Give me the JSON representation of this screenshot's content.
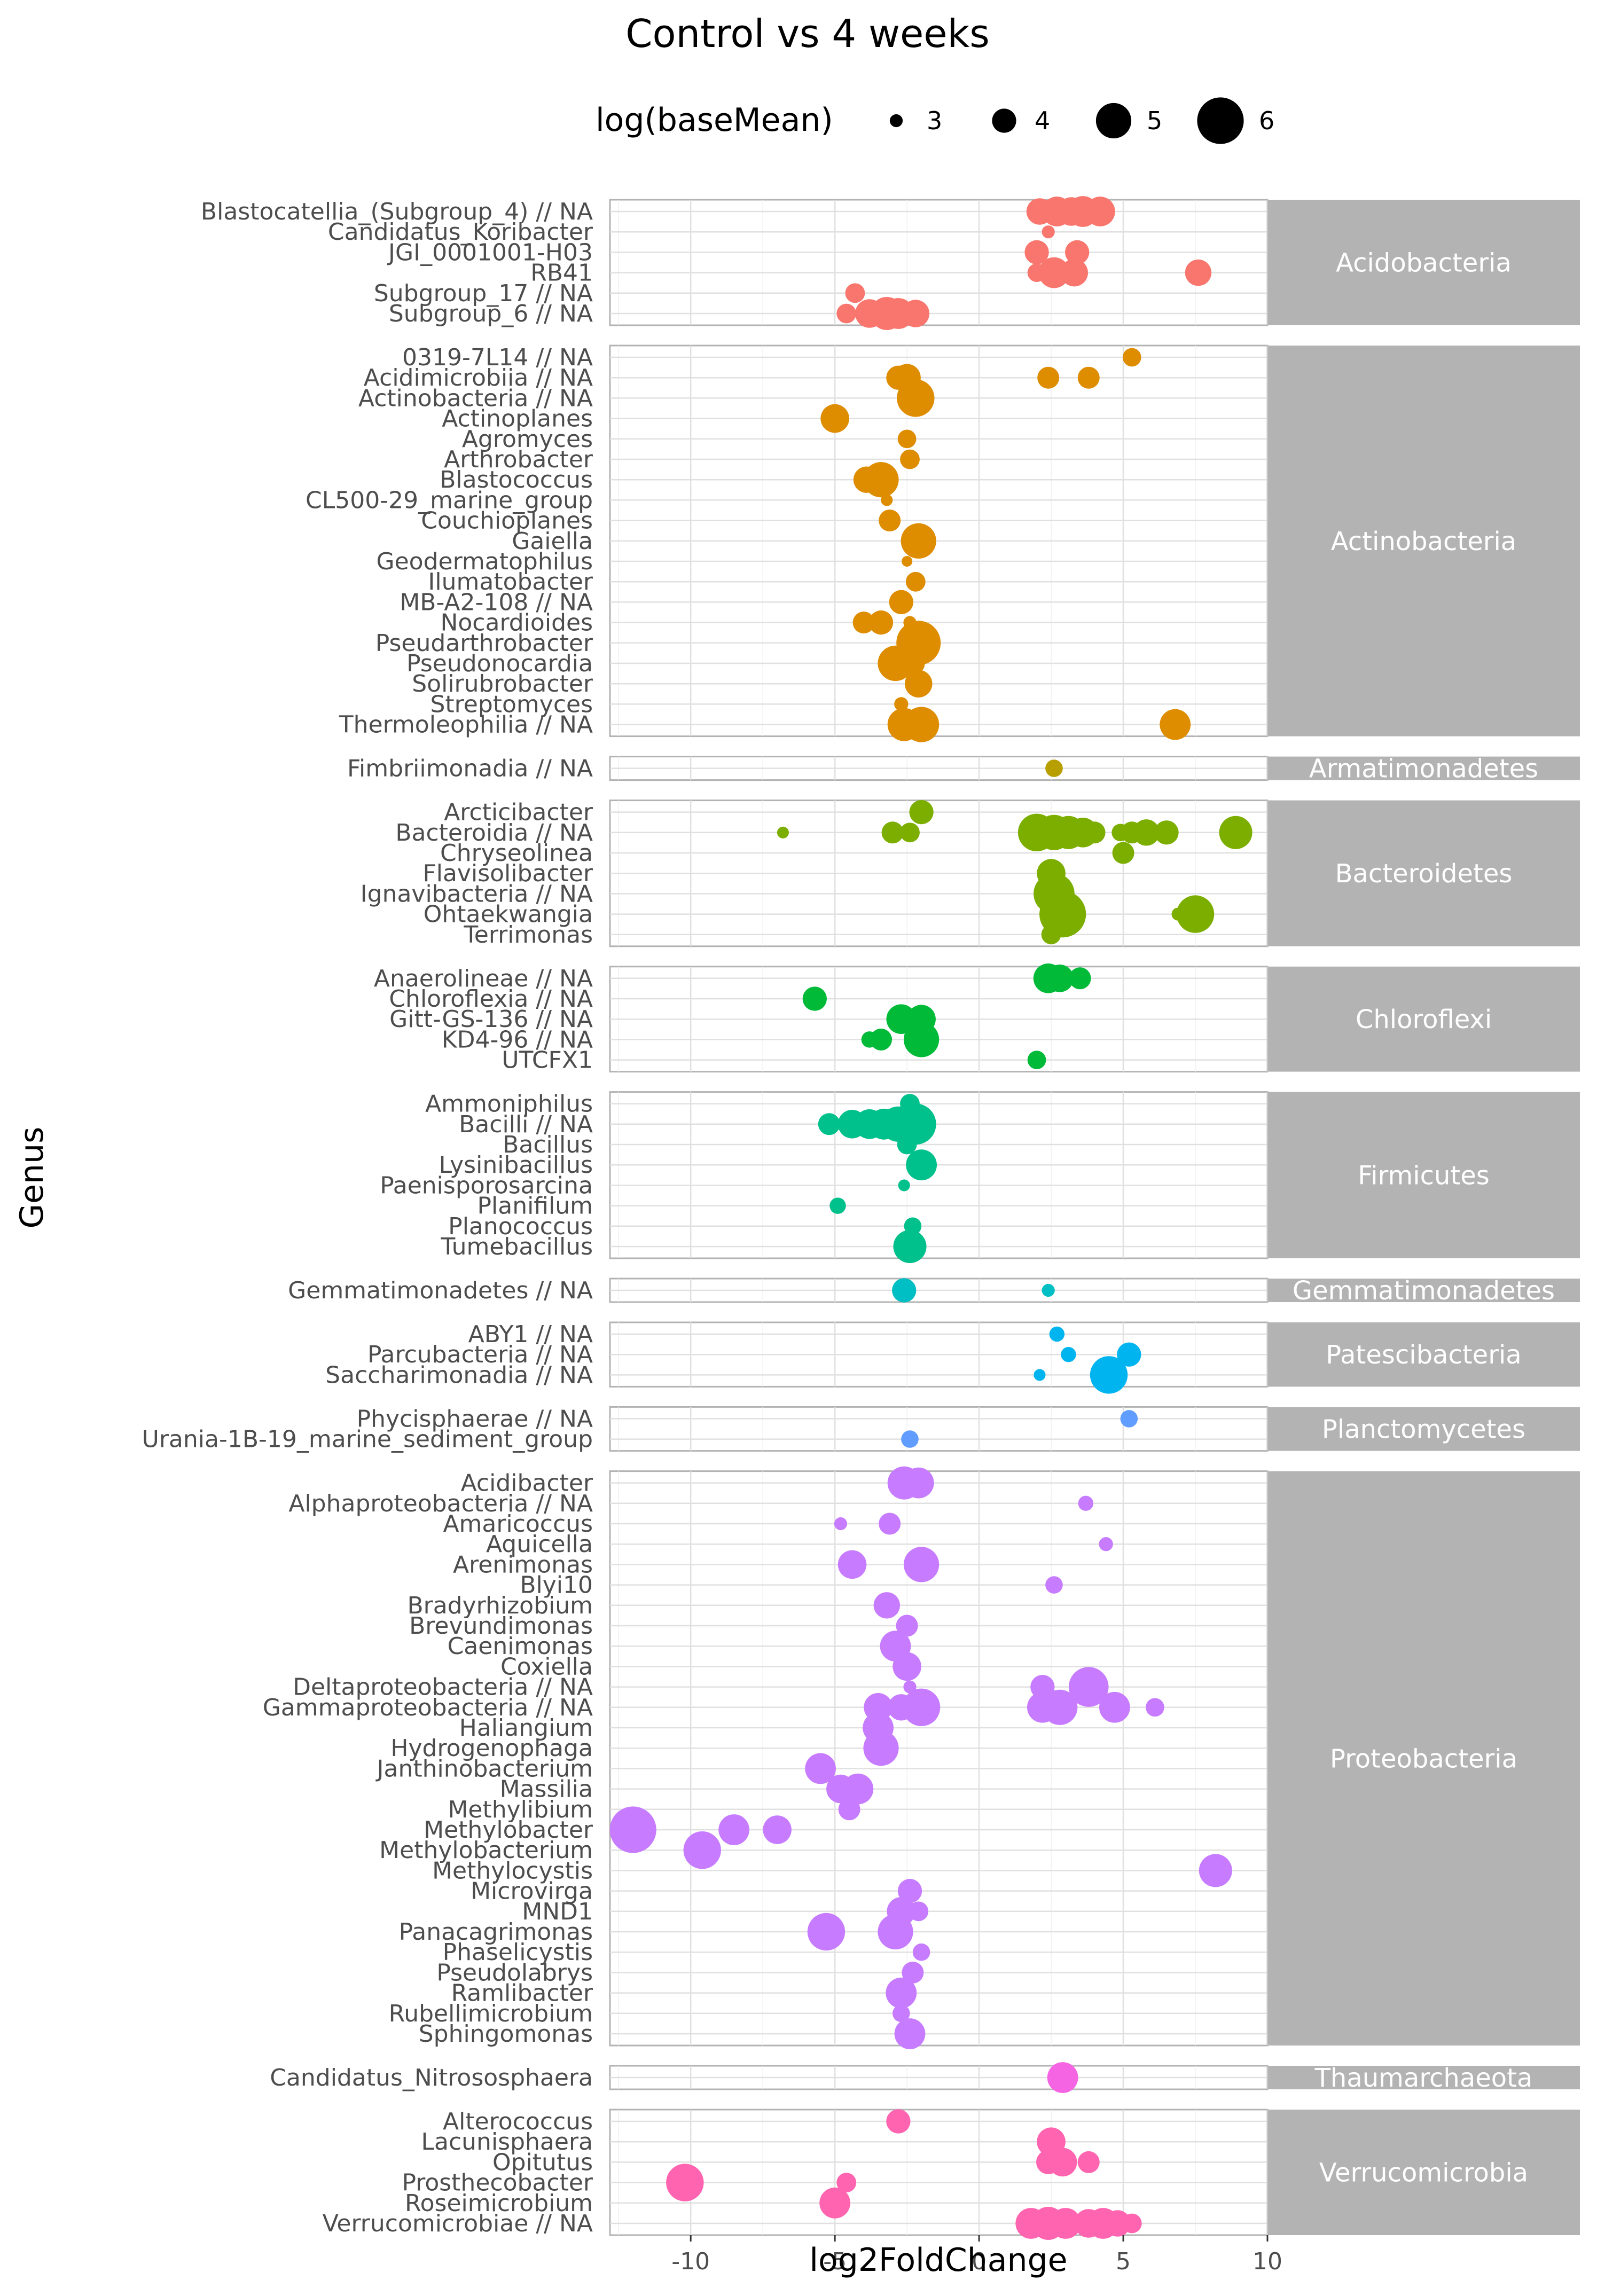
{
  "chart_data": {
    "type": "scatter",
    "title": "Control vs 4 weeks",
    "xlabel": "log2FoldChange",
    "ylabel": "Genus",
    "xlim": [
      -12.8,
      10
    ],
    "xticks": [
      -10,
      -5,
      0,
      5,
      10
    ],
    "grid": true,
    "legend": {
      "title": "log(baseMean)",
      "position": "top",
      "sizes": [
        3,
        4,
        5,
        6
      ]
    },
    "colors": {
      "Acidobacteria": "#F8766D",
      "Actinobacteria": "#DE8C00",
      "Armatimonadetes": "#B79F00",
      "Bacteroidetes": "#7CAE00",
      "Chloroflexi": "#00BA38",
      "Firmicutes": "#00C08B",
      "Gemmatimonadetes": "#00BFC4",
      "Patescibacteria": "#00B4F0",
      "Planctomycetes": "#619CFF",
      "Proteobacteria": "#C77CFF",
      "Thaumarchaeota": "#F564E3",
      "Verrucomicrobia": "#FF64B0"
    },
    "panels": [
      {
        "name": "Acidobacteria",
        "genera": [
          "Subgroup_6 // NA",
          "Subgroup_17 // NA",
          "RB41",
          "JGI_0001001-H03",
          "Candidatus_Koribacter",
          "Blastocatellia_(Subgroup_4) // NA"
        ],
        "points": [
          {
            "g": 0,
            "x": -4.6,
            "s": 3.6
          },
          {
            "g": 0,
            "x": -3.8,
            "s": 4.4
          },
          {
            "g": 0,
            "x": -3.2,
            "s": 4.8
          },
          {
            "g": 0,
            "x": -2.8,
            "s": 4.6
          },
          {
            "g": 0,
            "x": -2.2,
            "s": 4.3
          },
          {
            "g": 1,
            "x": -4.3,
            "s": 3.6
          },
          {
            "g": 2,
            "x": 2.0,
            "s": 3.5
          },
          {
            "g": 2,
            "x": 2.6,
            "s": 4.6
          },
          {
            "g": 2,
            "x": 3.3,
            "s": 4.3
          },
          {
            "g": 2,
            "x": 7.6,
            "s": 4.2
          },
          {
            "g": 3,
            "x": 2.0,
            "s": 4.0
          },
          {
            "g": 3,
            "x": 3.4,
            "s": 4.0
          },
          {
            "g": 4,
            "x": 2.4,
            "s": 3.0
          },
          {
            "g": 5,
            "x": 2.1,
            "s": 4.2
          },
          {
            "g": 5,
            "x": 2.7,
            "s": 4.5
          },
          {
            "g": 5,
            "x": 3.2,
            "s": 4.4
          },
          {
            "g": 5,
            "x": 3.6,
            "s": 4.6
          },
          {
            "g": 5,
            "x": 4.2,
            "s": 4.5
          }
        ]
      },
      {
        "name": "Actinobacteria",
        "genera": [
          "Thermoleophilia // NA",
          "Streptomyces",
          "Solirubrobacter",
          "Pseudonocardia",
          "Pseudarthrobacter",
          "Nocardioides",
          "MB-A2-108 // NA",
          "Ilumatobacter",
          "Geodermatophilus",
          "Gaiella",
          "Couchioplanes",
          "CL500-29_marine_group",
          "Blastococcus",
          "Arthrobacter",
          "Agromyces",
          "Actinoplanes",
          "Actinobacteria // NA",
          "Acidimicrobiia // NA",
          "0319-7L14 // NA"
        ],
        "points": [
          {
            "g": 0,
            "x": -2.6,
            "s": 4.8
          },
          {
            "g": 0,
            "x": -2.0,
            "s": 5.0
          },
          {
            "g": 0,
            "x": 6.8,
            "s": 4.6
          },
          {
            "g": 1,
            "x": -2.7,
            "s": 3.1
          },
          {
            "g": 2,
            "x": -2.1,
            "s": 4.3
          },
          {
            "g": 3,
            "x": -2.9,
            "s": 5.0
          },
          {
            "g": 3,
            "x": -2.3,
            "s": 4.0
          },
          {
            "g": 4,
            "x": -2.1,
            "s": 5.8
          },
          {
            "g": 5,
            "x": -4.0,
            "s": 3.8
          },
          {
            "g": 5,
            "x": -3.4,
            "s": 4.0
          },
          {
            "g": 5,
            "x": -2.4,
            "s": 3.0
          },
          {
            "g": 6,
            "x": -2.7,
            "s": 4.0
          },
          {
            "g": 7,
            "x": -2.2,
            "s": 3.6
          },
          {
            "g": 8,
            "x": -2.5,
            "s": 2.8
          },
          {
            "g": 9,
            "x": -2.1,
            "s": 5.0
          },
          {
            "g": 10,
            "x": -3.1,
            "s": 3.8
          },
          {
            "g": 11,
            "x": -3.2,
            "s": 2.9
          },
          {
            "g": 12,
            "x": -3.9,
            "s": 4.2
          },
          {
            "g": 12,
            "x": -3.4,
            "s": 5.0
          },
          {
            "g": 13,
            "x": -2.4,
            "s": 3.6
          },
          {
            "g": 14,
            "x": -2.5,
            "s": 3.5
          },
          {
            "g": 15,
            "x": -5.0,
            "s": 4.4
          },
          {
            "g": 16,
            "x": -2.2,
            "s": 5.2
          },
          {
            "g": 17,
            "x": -2.8,
            "s": 4.0
          },
          {
            "g": 17,
            "x": -2.5,
            "s": 4.3
          },
          {
            "g": 17,
            "x": 2.4,
            "s": 3.8
          },
          {
            "g": 17,
            "x": 3.8,
            "s": 3.8
          },
          {
            "g": 18,
            "x": 5.3,
            "s": 3.5
          }
        ]
      },
      {
        "name": "Armatimonadetes",
        "genera": [
          "Fimbriimonadia // NA"
        ],
        "points": [
          {
            "g": 0,
            "x": 2.6,
            "s": 3.4
          }
        ]
      },
      {
        "name": "Bacteroidetes",
        "genera": [
          "Terrimonas",
          "Ohtaekwangia",
          "Ignavibacteria // NA",
          "Flavisolibacter",
          "Chryseolinea",
          "Bacteroidia // NA",
          "Arcticibacter"
        ],
        "points": [
          {
            "g": 0,
            "x": 2.5,
            "s": 3.6
          },
          {
            "g": 1,
            "x": 2.9,
            "s": 6.0
          },
          {
            "g": 1,
            "x": 6.9,
            "s": 3.0
          },
          {
            "g": 1,
            "x": 7.5,
            "s": 5.2
          },
          {
            "g": 2,
            "x": 2.6,
            "s": 5.5
          },
          {
            "g": 3,
            "x": 2.5,
            "s": 4.4
          },
          {
            "g": 4,
            "x": 5.0,
            "s": 3.8
          },
          {
            "g": 5,
            "x": -6.8,
            "s": 2.9
          },
          {
            "g": 5,
            "x": -3.0,
            "s": 3.8
          },
          {
            "g": 5,
            "x": -2.4,
            "s": 3.6
          },
          {
            "g": 5,
            "x": 2.0,
            "s": 5.2
          },
          {
            "g": 5,
            "x": 2.6,
            "s": 5.0
          },
          {
            "g": 5,
            "x": 3.1,
            "s": 4.8
          },
          {
            "g": 5,
            "x": 3.6,
            "s": 4.5
          },
          {
            "g": 5,
            "x": 4.0,
            "s": 3.8
          },
          {
            "g": 5,
            "x": 4.9,
            "s": 3.4
          },
          {
            "g": 5,
            "x": 5.3,
            "s": 3.8
          },
          {
            "g": 5,
            "x": 5.8,
            "s": 4.2
          },
          {
            "g": 5,
            "x": 6.5,
            "s": 4.0
          },
          {
            "g": 5,
            "x": 8.9,
            "s": 4.8
          },
          {
            "g": 6,
            "x": -2.0,
            "s": 4.0
          }
        ]
      },
      {
        "name": "Chloroflexi",
        "genera": [
          "UTCFX1",
          "KD4-96 // NA",
          "Gitt-GS-136 // NA",
          "Chloroflexia // NA",
          "Anaerolineae // NA"
        ],
        "points": [
          {
            "g": 0,
            "x": 2.0,
            "s": 3.5
          },
          {
            "g": 1,
            "x": -3.8,
            "s": 3.3
          },
          {
            "g": 1,
            "x": -3.4,
            "s": 3.8
          },
          {
            "g": 1,
            "x": -2.0,
            "s": 5.0
          },
          {
            "g": 2,
            "x": -2.7,
            "s": 4.5
          },
          {
            "g": 2,
            "x": -2.0,
            "s": 4.4
          },
          {
            "g": 3,
            "x": -5.7,
            "s": 4.0
          },
          {
            "g": 4,
            "x": 2.4,
            "s": 4.5
          },
          {
            "g": 4,
            "x": 2.8,
            "s": 4.3
          },
          {
            "g": 4,
            "x": 3.5,
            "s": 3.8
          }
        ]
      },
      {
        "name": "Firmicutes",
        "genera": [
          "Tumebacillus",
          "Planococcus",
          "Planifilum",
          "Paenisporosarcina",
          "Lysinibacillus",
          "Bacillus",
          "Bacilli // NA",
          "Ammoniphilus"
        ],
        "points": [
          {
            "g": 0,
            "x": -2.4,
            "s": 4.8
          },
          {
            "g": 1,
            "x": -2.3,
            "s": 3.4
          },
          {
            "g": 2,
            "x": -4.9,
            "s": 3.3
          },
          {
            "g": 3,
            "x": -2.6,
            "s": 2.9
          },
          {
            "g": 4,
            "x": -2.0,
            "s": 4.6
          },
          {
            "g": 5,
            "x": -2.5,
            "s": 3.6
          },
          {
            "g": 6,
            "x": -5.2,
            "s": 3.8
          },
          {
            "g": 6,
            "x": -4.4,
            "s": 4.4
          },
          {
            "g": 6,
            "x": -3.8,
            "s": 4.5
          },
          {
            "g": 6,
            "x": -3.3,
            "s": 4.6
          },
          {
            "g": 6,
            "x": -2.8,
            "s": 5.0
          },
          {
            "g": 6,
            "x": -2.2,
            "s": 5.5
          },
          {
            "g": 7,
            "x": -2.4,
            "s": 3.6
          }
        ]
      },
      {
        "name": "Gemmatimonadetes",
        "genera": [
          "Gemmatimonadetes // NA"
        ],
        "points": [
          {
            "g": 0,
            "x": -2.6,
            "s": 4.0
          },
          {
            "g": 0,
            "x": 2.4,
            "s": 3.0
          }
        ]
      },
      {
        "name": "Patescibacteria",
        "genera": [
          "Saccharimonadia // NA",
          "Parcubacteria // NA",
          "ABY1 // NA"
        ],
        "points": [
          {
            "g": 0,
            "x": 2.1,
            "s": 2.9
          },
          {
            "g": 0,
            "x": 4.5,
            "s": 5.2
          },
          {
            "g": 1,
            "x": 3.1,
            "s": 3.2
          },
          {
            "g": 1,
            "x": 5.2,
            "s": 4.0
          },
          {
            "g": 2,
            "x": 2.7,
            "s": 3.2
          }
        ]
      },
      {
        "name": "Planctomycetes",
        "genera": [
          "Urania-1B-19_marine_sediment_group",
          "Phycisphaerae // NA"
        ],
        "points": [
          {
            "g": 0,
            "x": -2.4,
            "s": 3.4
          },
          {
            "g": 1,
            "x": 5.2,
            "s": 3.4
          }
        ]
      },
      {
        "name": "Proteobacteria",
        "genera": [
          "Sphingomonas",
          "Rubellimicrobium",
          "Ramlibacter",
          "Pseudolabrys",
          "Phaselicystis",
          "Panacagrimonas",
          "MND1",
          "Microvirga",
          "Methylocystis",
          "Methylobacterium",
          "Methylobacter",
          "Methylibium",
          "Massilia",
          "Janthinobacterium",
          "Hydrogenophaga",
          "Haliangium",
          "Gammaproteobacteria // NA",
          "Deltaproteobacteria // NA",
          "Coxiella",
          "Caenimonas",
          "Brevundimonas",
          "Bradyrhizobium",
          "Blyi10",
          "Arenimonas",
          "Aquicella",
          "Amaricoccus",
          "Alphaproteobacteria // NA",
          "Acidibacter"
        ],
        "points": [
          {
            "g": 0,
            "x": -2.4,
            "s": 4.6
          },
          {
            "g": 1,
            "x": -2.7,
            "s": 3.4
          },
          {
            "g": 2,
            "x": -2.7,
            "s": 4.6
          },
          {
            "g": 3,
            "x": -2.3,
            "s": 3.8
          },
          {
            "g": 4,
            "x": -2.0,
            "s": 3.4
          },
          {
            "g": 5,
            "x": -5.3,
            "s": 5.2
          },
          {
            "g": 5,
            "x": -2.9,
            "s": 5.0
          },
          {
            "g": 6,
            "x": -2.7,
            "s": 4.4
          },
          {
            "g": 6,
            "x": -2.1,
            "s": 3.6
          },
          {
            "g": 7,
            "x": -2.4,
            "s": 4.0
          },
          {
            "g": 8,
            "x": 8.2,
            "s": 4.8
          },
          {
            "g": 9,
            "x": -9.6,
            "s": 5.2
          },
          {
            "g": 10,
            "x": -12.0,
            "s": 6.0
          },
          {
            "g": 10,
            "x": -8.5,
            "s": 4.6
          },
          {
            "g": 10,
            "x": -7.0,
            "s": 4.4
          },
          {
            "g": 11,
            "x": -4.5,
            "s": 3.8
          },
          {
            "g": 12,
            "x": -4.8,
            "s": 4.4
          },
          {
            "g": 12,
            "x": -4.2,
            "s": 4.6
          },
          {
            "g": 13,
            "x": -5.5,
            "s": 4.6
          },
          {
            "g": 14,
            "x": -3.4,
            "s": 5.0
          },
          {
            "g": 15,
            "x": -3.5,
            "s": 4.6
          },
          {
            "g": 16,
            "x": -3.5,
            "s": 4.4
          },
          {
            "g": 16,
            "x": -2.7,
            "s": 4.2
          },
          {
            "g": 16,
            "x": -2.0,
            "s": 5.2
          },
          {
            "g": 16,
            "x": 2.2,
            "s": 4.6
          },
          {
            "g": 16,
            "x": 2.8,
            "s": 5.0
          },
          {
            "g": 16,
            "x": 4.7,
            "s": 4.6
          },
          {
            "g": 16,
            "x": 6.1,
            "s": 3.5
          },
          {
            "g": 17,
            "x": -2.4,
            "s": 3.0
          },
          {
            "g": 17,
            "x": 2.2,
            "s": 4.0
          },
          {
            "g": 17,
            "x": 3.8,
            "s": 5.4
          },
          {
            "g": 18,
            "x": -2.5,
            "s": 4.4
          },
          {
            "g": 19,
            "x": -2.9,
            "s": 4.6
          },
          {
            "g": 20,
            "x": -2.5,
            "s": 3.8
          },
          {
            "g": 21,
            "x": -3.2,
            "s": 4.2
          },
          {
            "g": 22,
            "x": 2.6,
            "s": 3.4
          },
          {
            "g": 23,
            "x": -4.4,
            "s": 4.4
          },
          {
            "g": 23,
            "x": -2.0,
            "s": 5.0
          },
          {
            "g": 24,
            "x": 4.4,
            "s": 3.1
          },
          {
            "g": 25,
            "x": -4.8,
            "s": 3.0
          },
          {
            "g": 25,
            "x": -3.1,
            "s": 3.8
          },
          {
            "g": 26,
            "x": 3.7,
            "s": 3.2
          },
          {
            "g": 27,
            "x": -2.6,
            "s": 4.8
          },
          {
            "g": 27,
            "x": -2.1,
            "s": 4.6
          }
        ]
      },
      {
        "name": "Thaumarchaeota",
        "genera": [
          "Candidatus_Nitrososphaera"
        ],
        "points": [
          {
            "g": 0,
            "x": 2.9,
            "s": 4.6
          }
        ]
      },
      {
        "name": "Verrucomicrobia",
        "genera": [
          "Verrucomicrobiae // NA",
          "Roseimicrobium",
          "Prosthecobacter",
          "Opitutus",
          "Lacunisphaera",
          "Alterococcus"
        ],
        "points": [
          {
            "g": 0,
            "x": 1.8,
            "s": 4.6
          },
          {
            "g": 0,
            "x": 2.4,
            "s": 4.8
          },
          {
            "g": 0,
            "x": 3.0,
            "s": 4.6
          },
          {
            "g": 0,
            "x": 3.8,
            "s": 4.4
          },
          {
            "g": 0,
            "x": 4.3,
            "s": 4.6
          },
          {
            "g": 0,
            "x": 4.8,
            "s": 4.2
          },
          {
            "g": 0,
            "x": 5.3,
            "s": 3.6
          },
          {
            "g": 1,
            "x": -5.0,
            "s": 4.6
          },
          {
            "g": 2,
            "x": -10.2,
            "s": 5.2
          },
          {
            "g": 2,
            "x": -4.6,
            "s": 3.6
          },
          {
            "g": 3,
            "x": 2.4,
            "s": 4.0
          },
          {
            "g": 3,
            "x": 2.9,
            "s": 4.4
          },
          {
            "g": 3,
            "x": 3.8,
            "s": 3.8
          },
          {
            "g": 4,
            "x": 2.5,
            "s": 4.4
          },
          {
            "g": 5,
            "x": -2.8,
            "s": 4.0
          }
        ]
      }
    ]
  }
}
